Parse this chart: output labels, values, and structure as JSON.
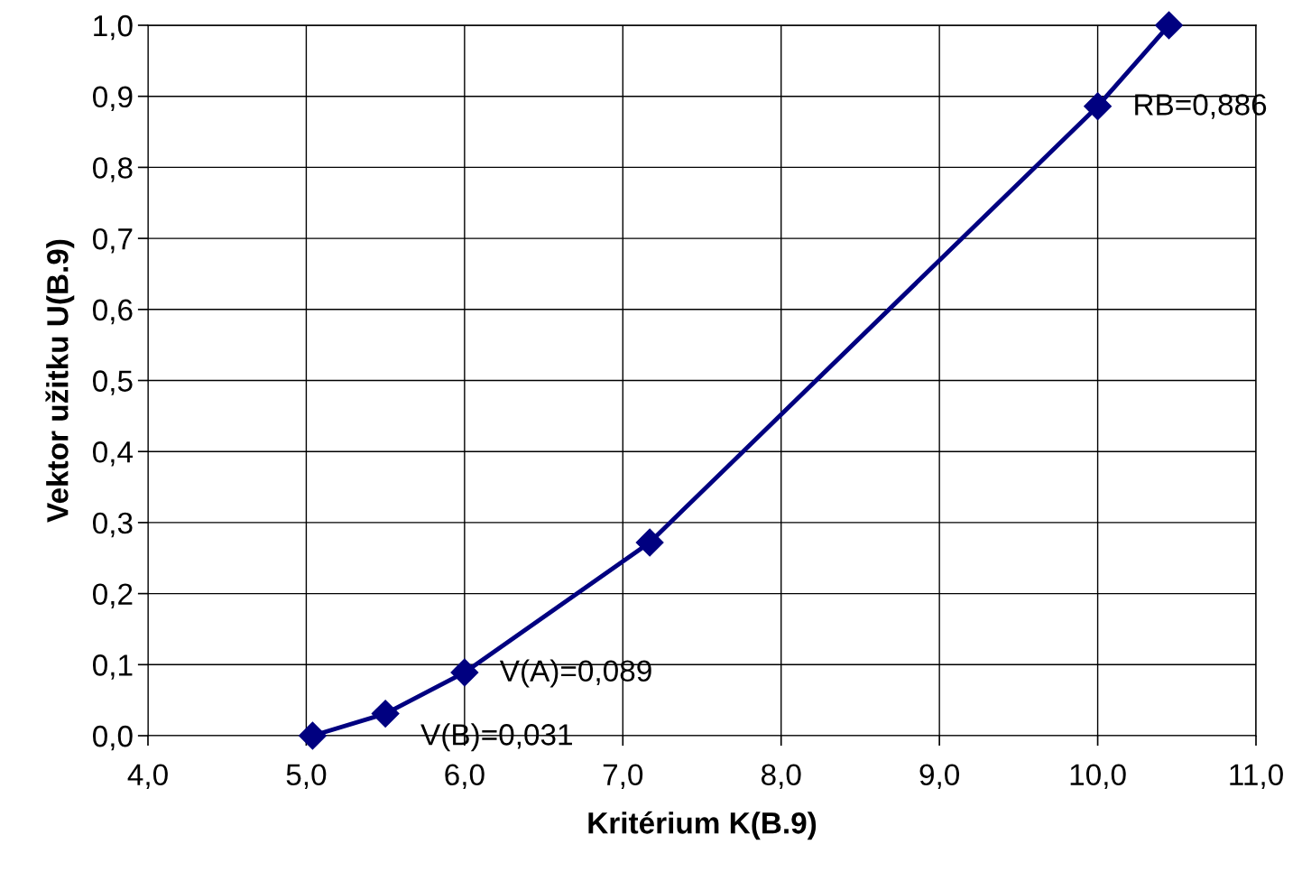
{
  "chart_data": {
    "type": "line",
    "xlabel": "Kritérium K(B.9)",
    "ylabel": "Vektor užitku U(B.9)",
    "x": [
      5.04,
      5.5,
      6.0,
      7.17,
      10.0,
      10.45
    ],
    "series": [
      {
        "color": "#000080",
        "values": [
          0.0,
          0.031,
          0.089,
          0.272,
          0.886,
          1.0
        ]
      }
    ],
    "marker": "diamond",
    "line_style": "solid",
    "grid": true,
    "xlim": [
      4.0,
      11.0
    ],
    "ylim": [
      0.0,
      1.0
    ],
    "xticks": [
      {
        "value": 4.0,
        "label": "4,0"
      },
      {
        "value": 5.0,
        "label": "5,0"
      },
      {
        "value": 6.0,
        "label": "6,0"
      },
      {
        "value": 7.0,
        "label": "7,0"
      },
      {
        "value": 8.0,
        "label": "8,0"
      },
      {
        "value": 9.0,
        "label": "9,0"
      },
      {
        "value": 10.0,
        "label": "10,0"
      },
      {
        "value": 11.0,
        "label": "11,0"
      }
    ],
    "yticks": [
      {
        "value": 0.0,
        "label": "0,0"
      },
      {
        "value": 0.1,
        "label": "0,1"
      },
      {
        "value": 0.2,
        "label": "0,2"
      },
      {
        "value": 0.3,
        "label": "0,3"
      },
      {
        "value": 0.4,
        "label": "0,4"
      },
      {
        "value": 0.5,
        "label": "0,5"
      },
      {
        "value": 0.6,
        "label": "0,6"
      },
      {
        "value": 0.7,
        "label": "0,7"
      },
      {
        "value": 0.8,
        "label": "0,8"
      },
      {
        "value": 0.9,
        "label": "0,9"
      },
      {
        "value": 1.0,
        "label": "1,0"
      }
    ],
    "annotations": [
      {
        "text": "V(B)=0,031",
        "x": 5.5,
        "y": 0.031
      },
      {
        "text": "V(A)=0,089",
        "x": 6.0,
        "y": 0.089
      },
      {
        "text": "RB=0,886",
        "x": 10.0,
        "y": 0.886
      }
    ]
  }
}
